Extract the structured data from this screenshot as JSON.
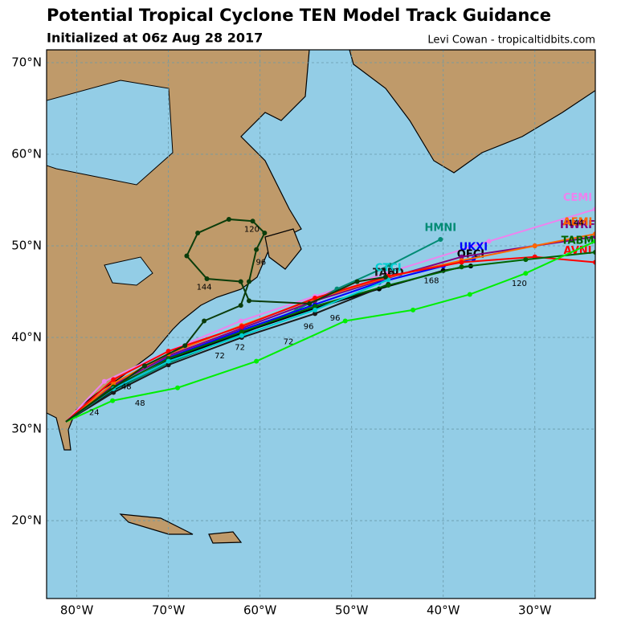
{
  "chart_data": {
    "type": "map",
    "title": "Potential Tropical Cyclone TEN Model Track Guidance",
    "subtitle": "Initialized at 06z Aug 28 2017",
    "credit": "Levi Cowan - tropicaltidbits.com",
    "xlim": [
      -83.3,
      -23.4
    ],
    "ylim": [
      11.5,
      71.4
    ],
    "xticks": [
      {
        "value": -80,
        "label": "80°W"
      },
      {
        "value": -70,
        "label": "70°W"
      },
      {
        "value": -60,
        "label": "60°W"
      },
      {
        "value": -50,
        "label": "50°W"
      },
      {
        "value": -40,
        "label": "40°W"
      },
      {
        "value": -30,
        "label": "30°W"
      }
    ],
    "yticks": [
      {
        "value": 20,
        "label": "20°N"
      },
      {
        "value": 30,
        "label": "30°N"
      },
      {
        "value": 40,
        "label": "40°N"
      },
      {
        "value": 50,
        "label": "50°N"
      },
      {
        "value": 60,
        "label": "60°N"
      },
      {
        "value": 70,
        "label": "70°N"
      }
    ],
    "grid": true,
    "series": [
      {
        "name": "CEMI",
        "color": "#ee82ee",
        "x": [
          -81.2,
          -77,
          -70,
          -62.1,
          -54,
          -46.3,
          -35,
          -23.4
        ],
        "values": [
          30.8,
          35.2,
          38.5,
          41.8,
          44.5,
          47,
          50.5,
          54
        ]
      },
      {
        "name": "HMNI",
        "color": "#008b74",
        "x": [
          -81.2,
          -76,
          -70,
          -62.1,
          -56,
          -51.6,
          -45.8,
          -40.3
        ],
        "values": [
          30.8,
          34.2,
          37.2,
          40.3,
          43,
          45.3,
          47.9,
          50.7
        ]
      },
      {
        "name": "UKXI",
        "color": "#0000ff",
        "x": [
          -81.2,
          -76,
          -70,
          -62,
          -54,
          -47,
          -40,
          -36.7
        ],
        "values": [
          30.8,
          34.5,
          37.8,
          40.8,
          43.6,
          46,
          47.8,
          48.6
        ]
      },
      {
        "name": "OFCI",
        "color": "#000000",
        "x": [
          -81.2,
          -76,
          -70,
          -62,
          -54,
          -47,
          -40,
          -37
        ],
        "values": [
          30.8,
          34.3,
          37.5,
          40.5,
          43.2,
          45.3,
          47.3,
          47.8
        ]
      },
      {
        "name": "TABD",
        "color": "#1a1a1a",
        "x": [
          -81.2,
          -76,
          -70,
          -62,
          -54,
          -46
        ],
        "values": [
          30.8,
          34,
          37,
          40,
          42.6,
          45.8
        ]
      },
      {
        "name": "HWRF",
        "color": "#800080",
        "x": [
          -81.2,
          -76,
          -70,
          -62,
          -54,
          -46,
          -38,
          -30,
          -23.4
        ],
        "values": [
          30.8,
          34.8,
          38,
          41,
          44,
          46.5,
          48.8,
          50,
          51
        ]
      },
      {
        "name": "AEMI",
        "color": "#ff6600",
        "x": [
          -81.2,
          -76,
          -70,
          -62,
          -54,
          -46,
          -38,
          -30,
          -23.4
        ],
        "values": [
          30.8,
          35,
          38.2,
          41.3,
          44.2,
          46.6,
          48.4,
          50,
          51.3
        ]
      },
      {
        "name": "AVNI",
        "color": "#ff0000",
        "x": [
          -81.2,
          -76,
          -70,
          -62,
          -54,
          -46,
          -38,
          -30,
          -23.4
        ],
        "values": [
          30.8,
          35.4,
          38.5,
          41.2,
          44.3,
          46.7,
          48.2,
          48.8,
          48.2
        ]
      },
      {
        "name": "TABM",
        "color": "#006400",
        "x": [
          -81.2,
          -76,
          -70,
          -62,
          -54,
          -46,
          -38,
          -31,
          -23.4
        ],
        "values": [
          30.8,
          34.6,
          37.7,
          40.6,
          43.4,
          45.7,
          47.7,
          48.5,
          49.3
        ]
      },
      {
        "name": "CTCI",
        "color": "#00ced1",
        "x": [
          -81.2,
          -76,
          -70,
          -62,
          -54,
          -46
        ],
        "values": [
          30.8,
          34.4,
          37.4,
          40.2,
          43,
          46.3
        ]
      },
      {
        "color": "#00ee00",
        "x": [
          -81.2,
          -76.1,
          -69,
          -60.4,
          -50.7,
          -43.3,
          -37.1,
          -31,
          -23.4
        ],
        "values": [
          30.8,
          33.1,
          34.5,
          37.4,
          41.8,
          43,
          44.7,
          47,
          50.5
        ]
      },
      {
        "color": "#0b3d0b",
        "x": [
          -81.2,
          -72.6,
          -68.2,
          -66.1,
          -62.1,
          -61.2,
          -60.4,
          -59.5,
          -60.8,
          -63.4,
          -66.8,
          -68,
          -65.8,
          -62.1,
          -61.2,
          -54.6,
          -49.4,
          -46.3
        ],
        "values": [
          30.8,
          36.9,
          39.1,
          41.8,
          43.5,
          46.1,
          49.6,
          51.4,
          52.7,
          52.9,
          51.4,
          48.9,
          46.4,
          46.1,
          44,
          43.7,
          46.1,
          46.6
        ]
      }
    ],
    "annotations": [
      {
        "text": "120",
        "x": -60.9,
        "y": 51.8
      },
      {
        "text": "96",
        "x": -59.9,
        "y": 48.2
      },
      {
        "text": "144",
        "x": -66.1,
        "y": 45.5
      },
      {
        "text": "168",
        "x": -41.3,
        "y": 46.2
      },
      {
        "text": "144",
        "x": -25.5,
        "y": 52.5
      },
      {
        "text": "120",
        "x": -31.7,
        "y": 45.9
      },
      {
        "text": "120",
        "x": -45.8,
        "y": 47.2
      },
      {
        "text": "72",
        "x": -62.2,
        "y": 38.9
      },
      {
        "text": "72",
        "x": -56.9,
        "y": 39.5
      },
      {
        "text": "96",
        "x": -54.7,
        "y": 41.2
      },
      {
        "text": "96",
        "x": -51.8,
        "y": 42.1
      },
      {
        "text": "48",
        "x": -74.6,
        "y": 34.6
      },
      {
        "text": "48",
        "x": -73.1,
        "y": 32.8
      },
      {
        "text": "72",
        "x": -64.4,
        "y": 38.0
      },
      {
        "text": "24",
        "x": -78.1,
        "y": 31.8
      }
    ]
  }
}
